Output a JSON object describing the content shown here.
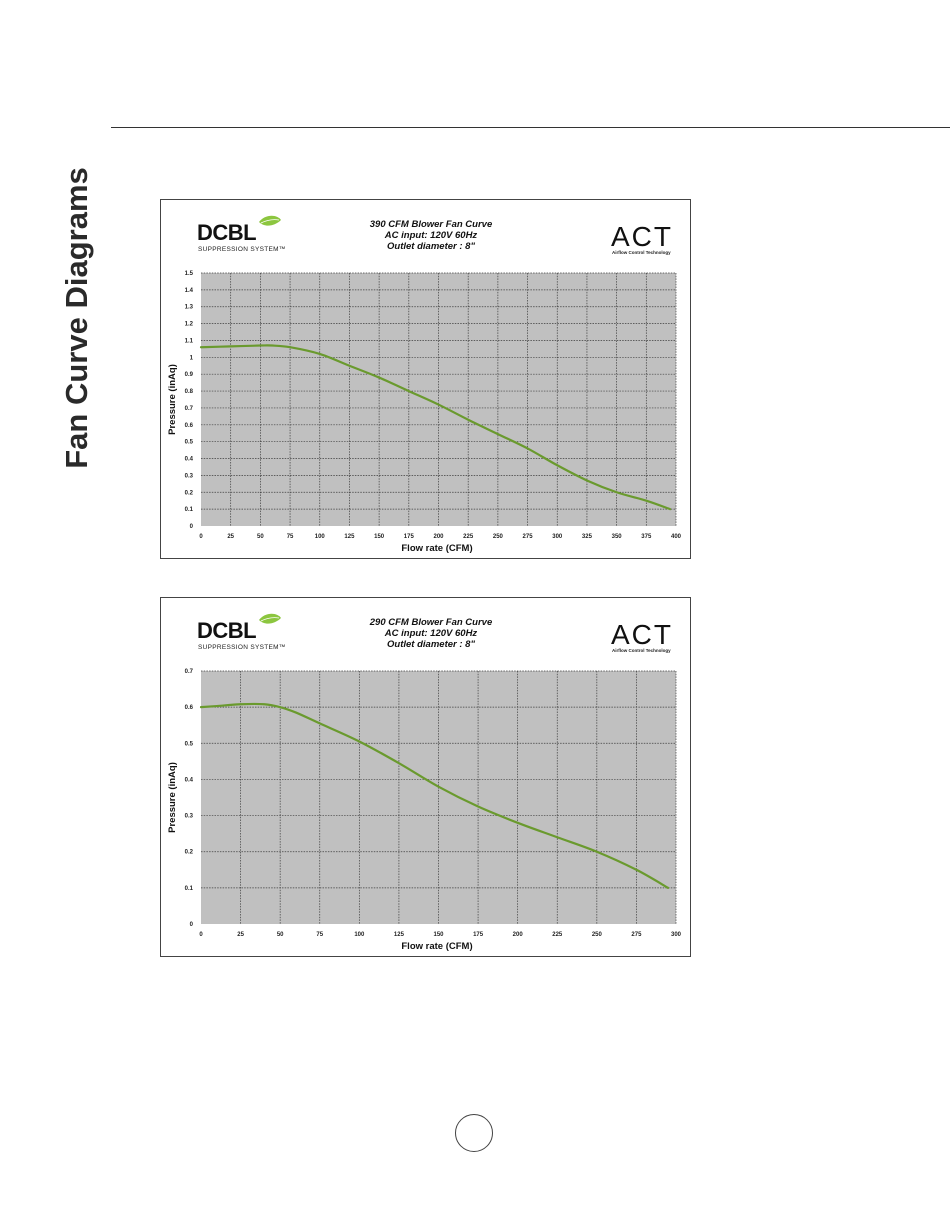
{
  "page": {
    "section_title": "Fan Curve Diagrams"
  },
  "logos": {
    "dcbl_brand": "DCBL",
    "dcbl_sub": "SUPPRESSION SYSTEM™",
    "act_brand": "ACT",
    "act_sub": "Airflow Control Technology"
  },
  "colors": {
    "curve": "#6a9a2e",
    "plot_bg": "#c0c0c0",
    "grid": "#3c3c3c",
    "leaf": "#8cc63f"
  },
  "chart_data": [
    {
      "type": "line",
      "title": "390 CFM Blower Fan Curve",
      "subtitle_lines": [
        "AC input: 120V  60Hz",
        "Outlet diameter : 8\""
      ],
      "xlabel": "Flow rate (CFM)",
      "ylabel": "Pressure (inAq)",
      "xlim": [
        0,
        400
      ],
      "ylim": [
        0,
        1.5
      ],
      "xticks": [
        0,
        25,
        50,
        75,
        100,
        125,
        150,
        175,
        200,
        225,
        250,
        275,
        300,
        325,
        350,
        375,
        400
      ],
      "yticks": [
        0,
        0.1,
        0.2,
        0.3,
        0.4,
        0.5,
        0.6,
        0.7,
        0.8,
        0.9,
        1,
        1.1,
        1.2,
        1.3,
        1.4,
        1.5
      ],
      "grid": true,
      "series": [
        {
          "x": [
            0,
            25,
            50,
            60,
            75,
            100,
            125,
            150,
            175,
            200,
            225,
            250,
            275,
            300,
            325,
            350,
            375,
            395
          ],
          "y": [
            1.06,
            1.065,
            1.07,
            1.07,
            1.06,
            1.02,
            0.95,
            0.88,
            0.8,
            0.72,
            0.63,
            0.545,
            0.46,
            0.36,
            0.27,
            0.2,
            0.15,
            0.1
          ]
        }
      ]
    },
    {
      "type": "line",
      "title": "290 CFM Blower Fan Curve",
      "subtitle_lines": [
        "AC input: 120V  60Hz",
        "Outlet diameter : 8\""
      ],
      "xlabel": "Flow rate (CFM)",
      "ylabel": "Pressure (inAq)",
      "xlim": [
        0,
        300
      ],
      "ylim": [
        0,
        0.7
      ],
      "xticks": [
        0,
        25,
        50,
        75,
        100,
        125,
        150,
        175,
        200,
        225,
        250,
        275,
        300
      ],
      "yticks": [
        0,
        0.1,
        0.2,
        0.3,
        0.4,
        0.5,
        0.6,
        0.7
      ],
      "grid": true,
      "series": [
        {
          "x": [
            0,
            10,
            25,
            40,
            50,
            60,
            75,
            100,
            125,
            150,
            175,
            200,
            225,
            250,
            275,
            295
          ],
          "y": [
            0.6,
            0.603,
            0.608,
            0.608,
            0.6,
            0.585,
            0.555,
            0.505,
            0.445,
            0.38,
            0.325,
            0.28,
            0.24,
            0.2,
            0.15,
            0.1
          ]
        }
      ]
    }
  ]
}
